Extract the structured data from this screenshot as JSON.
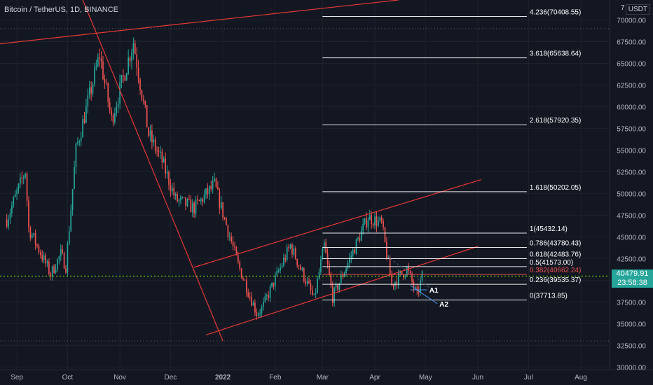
{
  "header": {
    "symbol_title": "Bitcoin / TetherUS, 1D, BINANCE",
    "currency": "USDT",
    "currency_prefix": "7"
  },
  "current_price": {
    "price": "40479.91",
    "countdown": "23:58:38"
  },
  "colors": {
    "background": "#131722",
    "up": "#26a69a",
    "down": "#ef5350",
    "trendline": "#e53935",
    "fib_line": "#ffffff",
    "fib_highlight": "#ef5350",
    "price_line": "#7cfc00",
    "grid": "#1e222d"
  },
  "chart_data": {
    "type": "candlestick",
    "title": "Bitcoin / TetherUS, 1D, BINANCE",
    "y_ticks": [
      "30000.00",
      "32500.00",
      "35000.00",
      "37500.00",
      "40000.00",
      "42500.00",
      "45000.00",
      "47500.00",
      "50000.00",
      "52500.00",
      "55000.00",
      "57500.00",
      "60000.00",
      "62500.00",
      "65000.00",
      "67500.00",
      "70000.00"
    ],
    "x_ticks": [
      "Sep",
      "Oct",
      "Nov",
      "Dec",
      "2022",
      "Feb",
      "Mar",
      "Apr",
      "May",
      "Jun",
      "Jul",
      "Aug"
    ],
    "ylim": [
      29700,
      72300
    ],
    "price_waypoints": [
      [
        "2021-08-26",
        47000
      ],
      [
        "2021-09-06",
        52600
      ],
      [
        "2021-09-08",
        46000
      ],
      [
        "2021-09-21",
        40700
      ],
      [
        "2021-09-27",
        43000
      ],
      [
        "2021-09-30",
        41600
      ],
      [
        "2021-10-06",
        55000
      ],
      [
        "2021-10-20",
        66000
      ],
      [
        "2021-10-27",
        58500
      ],
      [
        "2021-11-09",
        67500
      ],
      [
        "2021-11-18",
        56800
      ],
      [
        "2021-11-26",
        53700
      ],
      [
        "2021-12-04",
        49300
      ],
      [
        "2021-12-15",
        48300
      ],
      [
        "2021-12-27",
        51000
      ],
      [
        "2022-01-10",
        41800
      ],
      [
        "2022-01-21",
        36200
      ],
      [
        "2022-01-24",
        36700
      ],
      [
        "2022-02-10",
        44000
      ],
      [
        "2022-02-24",
        37800
      ],
      [
        "2022-03-02",
        44000
      ],
      [
        "2022-03-07",
        38000
      ],
      [
        "2022-03-28",
        47300
      ],
      [
        "2022-04-05",
        46500
      ],
      [
        "2022-04-11",
        39500
      ],
      [
        "2022-04-20",
        41300
      ],
      [
        "2022-04-26",
        38200
      ],
      [
        "2022-04-29",
        40480
      ]
    ],
    "fibonacci_levels": [
      {
        "ratio": "4.236",
        "price": 70408.55,
        "label": "4.236(70408.55)"
      },
      {
        "ratio": "3.618",
        "price": 65638.64,
        "label": "3.618(65638.64)"
      },
      {
        "ratio": "2.618",
        "price": 57920.35,
        "label": "2.618(57920.35)"
      },
      {
        "ratio": "1.618",
        "price": 50202.05,
        "label": "1.618(50202.05)"
      },
      {
        "ratio": "1",
        "price": 45432.14,
        "label": "1(45432.14)"
      },
      {
        "ratio": "0.786",
        "price": 43780.43,
        "label": "0.786(43780.43)"
      },
      {
        "ratio": "0.618",
        "price": 42483.76,
        "label": "0.618(42483.76)"
      },
      {
        "ratio": "0.5",
        "price": 41573.0,
        "label": "0.5(41573.00)"
      },
      {
        "ratio": "0.382",
        "price": 40662.24,
        "label": "0.382(40662.24)",
        "highlight": true
      },
      {
        "ratio": "0.236",
        "price": 39535.37,
        "label": "0.236(39535.37)"
      },
      {
        "ratio": "0",
        "price": 37713.85,
        "label": "0(37713.85)"
      }
    ],
    "fib_start_date": "2022-03-01",
    "fib_end_date": "2022-06-30",
    "trendlines": [
      {
        "name": "upper-resistance",
        "from": [
          "2021-08-01",
          66800
        ],
        "to": [
          "2022-04-15",
          72300
        ]
      },
      {
        "name": "descending",
        "from": [
          "2021-10-10",
          72300
        ],
        "to": [
          "2022-01-01",
          33000
        ]
      },
      {
        "name": "channel-upper",
        "from": [
          "2021-12-15",
          41500
        ],
        "to": [
          "2022-06-03",
          51600
        ]
      },
      {
        "name": "channel-lower",
        "from": [
          "2021-12-22",
          33700
        ],
        "to": [
          "2022-06-01",
          43900
        ]
      }
    ],
    "annotations": [
      {
        "label": "A1",
        "date": "2022-05-02",
        "price": 38900
      },
      {
        "label": "A2",
        "date": "2022-05-08",
        "price": 37300
      }
    ]
  }
}
